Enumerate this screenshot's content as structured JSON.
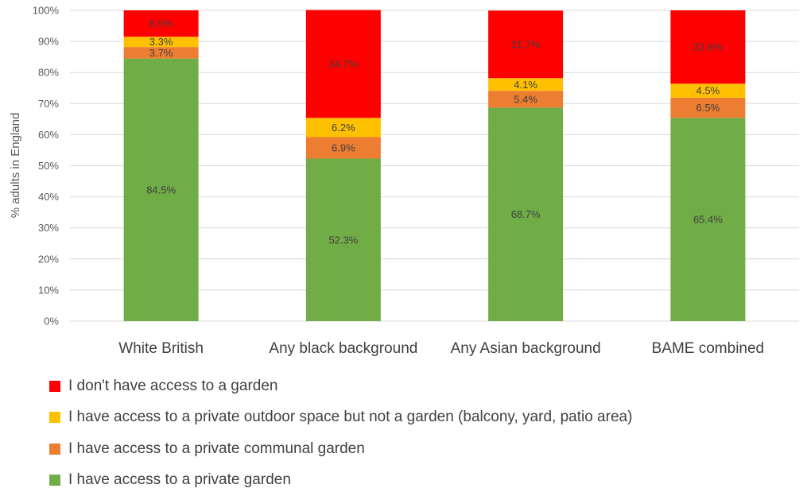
{
  "chart_data": {
    "type": "bar",
    "stacked": true,
    "ylabel": "% adults in England",
    "ylim": [
      0,
      100
    ],
    "yticks": [
      "0%",
      "10%",
      "20%",
      "30%",
      "40%",
      "50%",
      "60%",
      "70%",
      "80%",
      "90%",
      "100%"
    ],
    "categories": [
      "White British",
      "Any black background",
      "Any Asian background",
      "BAME combined"
    ],
    "series": [
      {
        "name": "I have access to a private garden",
        "color": "#70ad47",
        "values": [
          84.5,
          52.3,
          68.7,
          65.4
        ],
        "labels": [
          "84.5%",
          "52.3%",
          "68.7%",
          "65.4%"
        ]
      },
      {
        "name": "I have access to a private communal garden",
        "color": "#ed7d31",
        "values": [
          3.7,
          6.9,
          5.4,
          6.5
        ],
        "labels": [
          "3.7%",
          "6.9%",
          "5.4%",
          "6.5%"
        ]
      },
      {
        "name": "I have access to a private outdoor space but not a garden (balcony, yard, patio area)",
        "color": "#ffc000",
        "values": [
          3.3,
          6.2,
          4.1,
          4.5
        ],
        "labels": [
          "3.3%",
          "6.2%",
          "4.1%",
          "4.5%"
        ]
      },
      {
        "name": "I don't have access to a garden",
        "color": "#ff0000",
        "values": [
          8.5,
          34.7,
          21.7,
          23.6
        ],
        "labels": [
          "8.5%",
          "34.7%",
          "21.7%",
          "23.6%"
        ]
      }
    ],
    "legend_position": "bottom",
    "grid": true
  }
}
